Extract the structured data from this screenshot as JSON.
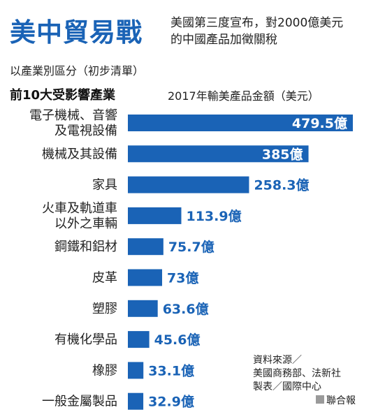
{
  "title": "美中貿易戰",
  "subtitle_line1": "美國第三度宣布，對2000億美元",
  "subtitle_line2": "的中國產品加徵關稅",
  "classification": "以產業別區分（初步清單）",
  "section_heading": "前10大受影響產業",
  "value_heading": "2017年輸美產品金額（美元）",
  "chart_data": {
    "type": "bar",
    "orientation": "horizontal",
    "unit": "億",
    "categories": [
      [
        "電子機械、音響",
        "及電視設備"
      ],
      [
        "機械及其設備"
      ],
      [
        "家具"
      ],
      [
        "火車及軌道車",
        "以外之車輛"
      ],
      [
        "鋼鐵和鋁材"
      ],
      [
        "皮革"
      ],
      [
        "塑膠"
      ],
      [
        "有機化學品"
      ],
      [
        "橡膠"
      ],
      [
        "一般金屬製品"
      ]
    ],
    "values": [
      479.5,
      385,
      258.3,
      113.9,
      75.7,
      73,
      63.6,
      45.6,
      33.1,
      32.9
    ],
    "value_labels": [
      "479.5億",
      "385億",
      "258.3億",
      "113.9億",
      "75.7億",
      "73億",
      "63.6億",
      "45.6億",
      "33.1億",
      "32.9億"
    ],
    "bar_color": "#1a63b6",
    "grid": false,
    "legend": "none"
  },
  "source_line1": "資料來源／",
  "source_line2": "美國商務部、法新社",
  "source_line3": "製表／國際中心",
  "publisher": "聯合報"
}
